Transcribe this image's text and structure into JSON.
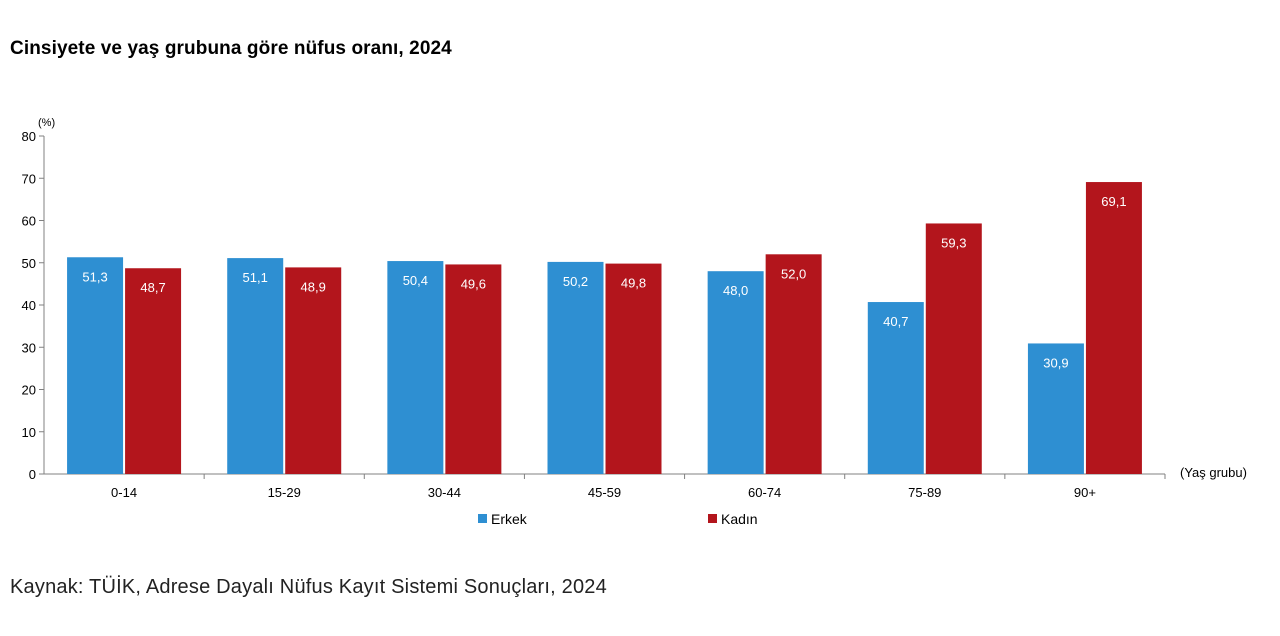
{
  "chart_data": {
    "type": "bar",
    "title": "Cinsiyete ve yaş grubuna göre nüfus oranı, 2024",
    "ylabel": "(%)",
    "xlabel": "(Yaş grubu)",
    "ylim": [
      0,
      80
    ],
    "yticks": [
      "0",
      "10",
      "20",
      "30",
      "40",
      "50",
      "60",
      "70",
      "80"
    ],
    "grid": false,
    "legend_position": "bottom",
    "categories": [
      "0-14",
      "15-29",
      "30-44",
      "45-59",
      "60-74",
      "75-89",
      "90+"
    ],
    "series": [
      {
        "name": "Erkek",
        "color": "#2e8fd2",
        "values": [
          51.3,
          51.1,
          50.4,
          50.2,
          48.0,
          40.7,
          30.9
        ],
        "labels": [
          "51,3",
          "51,1",
          "50,4",
          "50,2",
          "48,0",
          "40,7",
          "30,9"
        ]
      },
      {
        "name": "Kadın",
        "color": "#b3151c",
        "values": [
          48.7,
          48.9,
          49.6,
          49.8,
          52.0,
          59.3,
          69.1
        ],
        "labels": [
          "48,7",
          "48,9",
          "49,6",
          "49,8",
          "52,0",
          "59,3",
          "69,1"
        ]
      }
    ]
  },
  "source": "Kaynak: TÜİK, Adrese Dayalı Nüfus Kayıt Sistemi Sonuçları, 2024"
}
